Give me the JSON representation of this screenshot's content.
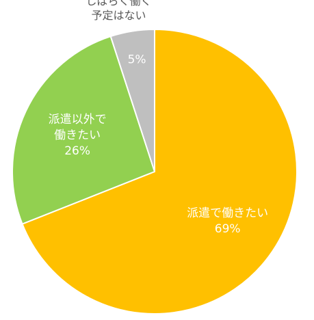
{
  "chart_data": {
    "type": "pie",
    "title": "",
    "start_angle_deg": 0,
    "direction": "clockwise",
    "slices": [
      {
        "label": [
          "派遣で働きたい"
        ],
        "value": 69,
        "value_label": "69%",
        "color": "#FFC000",
        "label_position": "inside"
      },
      {
        "label": [
          "派遣以外で",
          "働きたい"
        ],
        "value": 26,
        "value_label": "26%",
        "color": "#92D050",
        "label_position": "inside"
      },
      {
        "label": [
          "しばらく働く",
          "予定はない"
        ],
        "value": 5,
        "value_label": "5%",
        "color": "#BFBFBF",
        "label_position": "outside-top"
      }
    ],
    "slice_border_color": "#FFFFFF",
    "legend": "none"
  }
}
